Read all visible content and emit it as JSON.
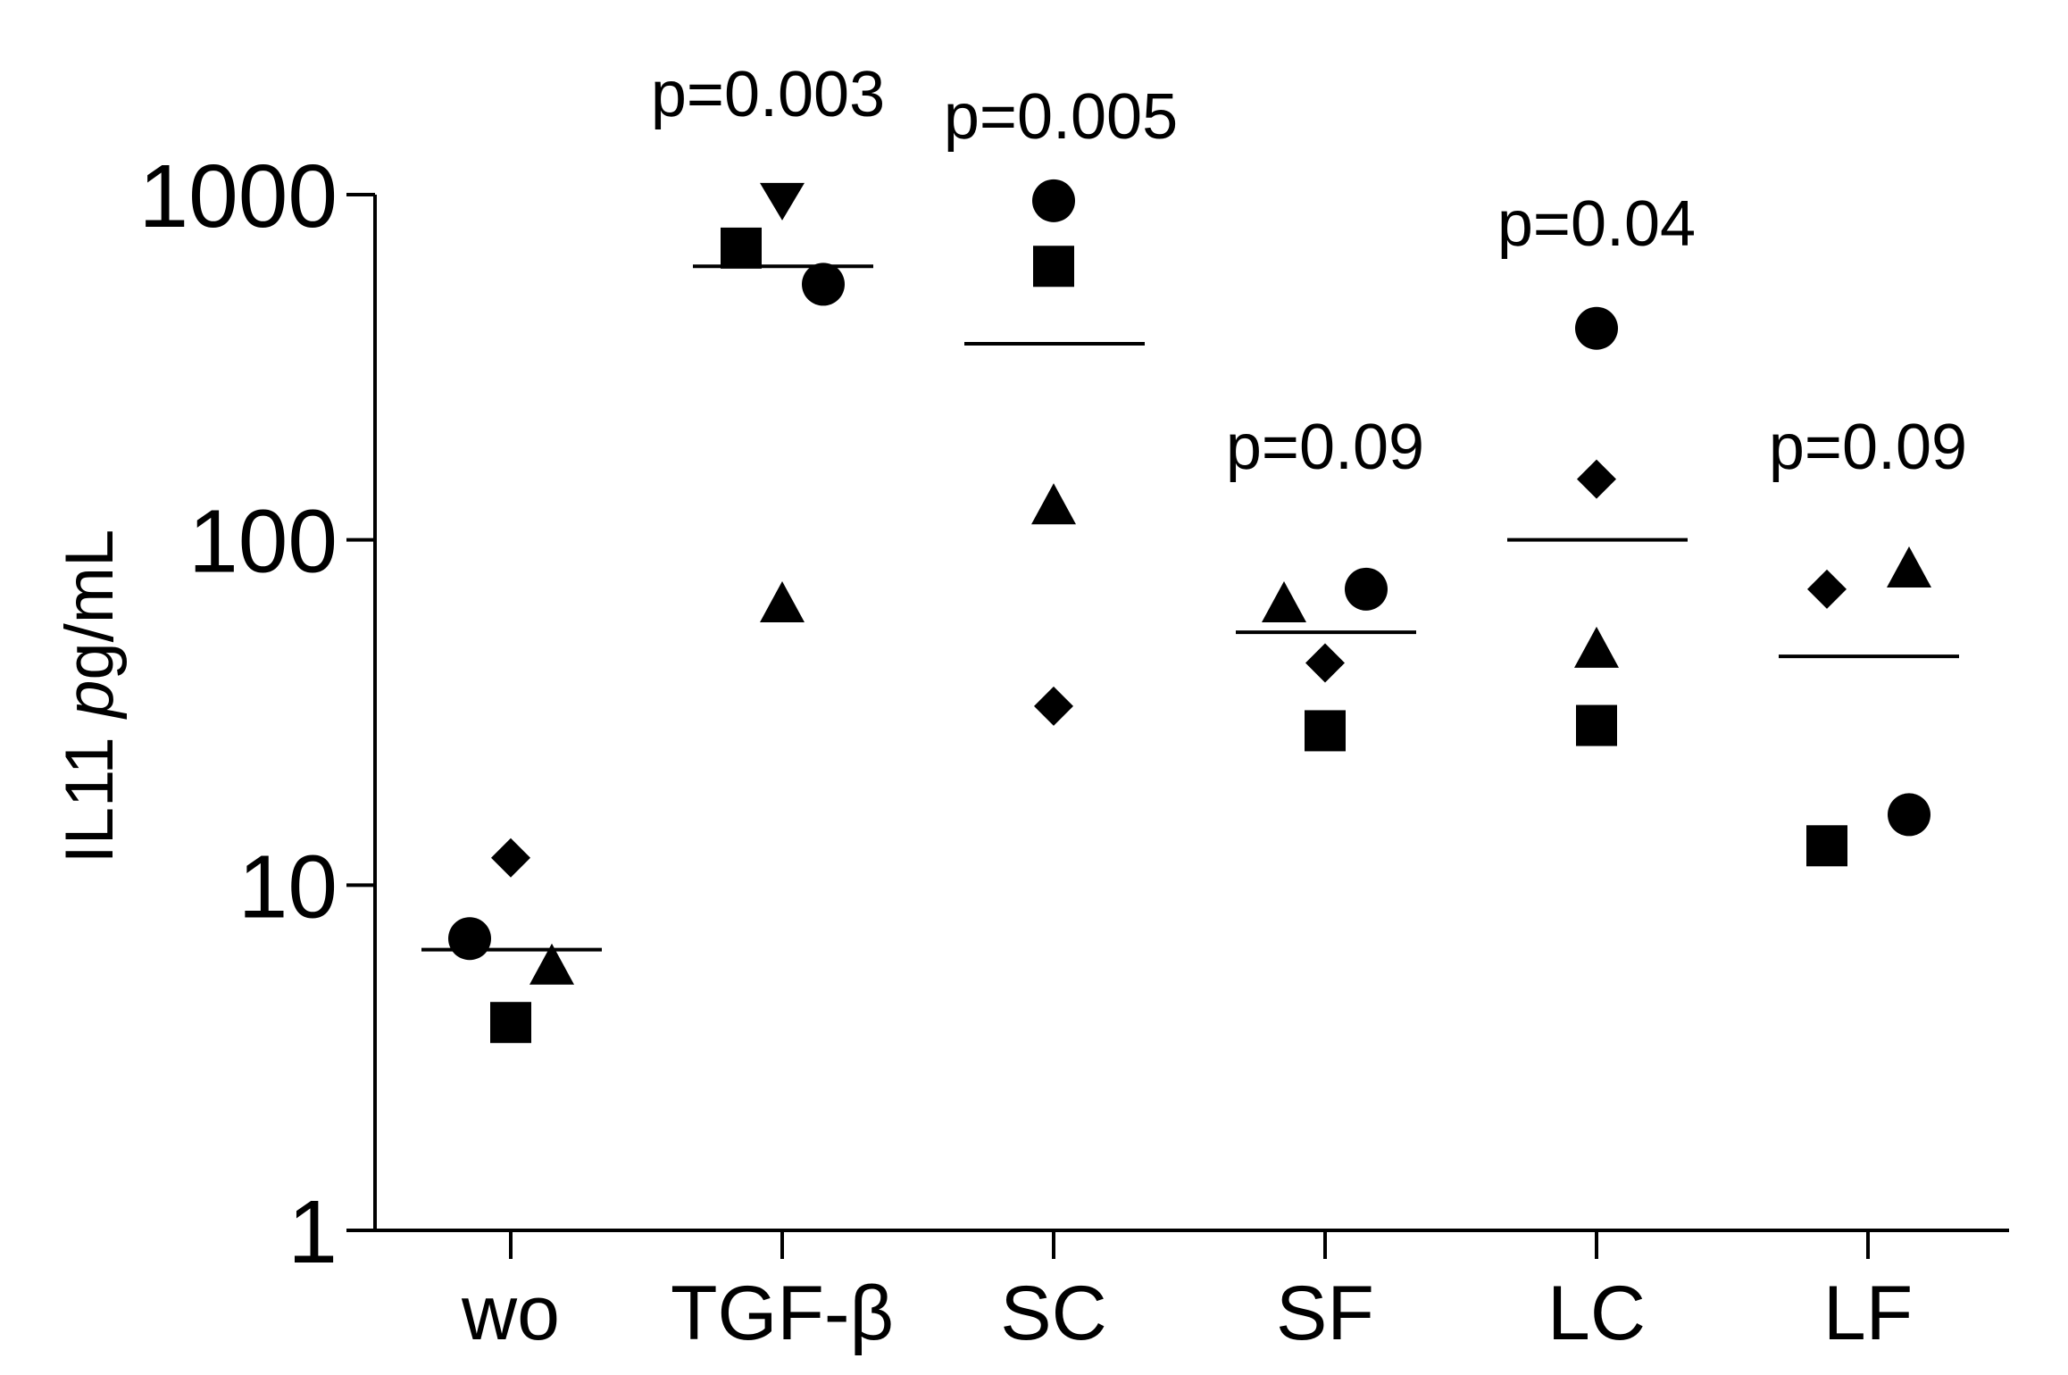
{
  "chart_data": {
    "type": "scatter",
    "title": "",
    "xlabel": "",
    "ylabel": {
      "prefix": "IL11 ",
      "italic": "p",
      "suffix": "g/mL"
    },
    "yscale": "log",
    "ylim": [
      1,
      1000
    ],
    "yticks": [
      {
        "value": 1,
        "label": "1"
      },
      {
        "value": 10,
        "label": "10"
      },
      {
        "value": 100,
        "label": "100"
      },
      {
        "value": 1000,
        "label": "1000"
      }
    ],
    "categories": [
      "wo",
      "TGF-β",
      "SC",
      "SF",
      "LC",
      "LF"
    ],
    "groups": [
      {
        "category": "wo",
        "mean": 6.5,
        "p_value": null,
        "points": [
          {
            "marker": "diamond",
            "value": 12
          },
          {
            "marker": "circle",
            "value": 7
          },
          {
            "marker": "triangle",
            "value": 5.8
          },
          {
            "marker": "square",
            "value": 4
          }
        ]
      },
      {
        "category": "TGF-β",
        "mean": 620,
        "p_value": "p=0.003",
        "points": [
          {
            "marker": "triangle-down",
            "value": 960
          },
          {
            "marker": "square",
            "value": 700
          },
          {
            "marker": "circle",
            "value": 550
          },
          {
            "marker": "triangle",
            "value": 65
          }
        ]
      },
      {
        "category": "SC",
        "mean": 370,
        "p_value": "p=0.005",
        "points": [
          {
            "marker": "circle",
            "value": 960
          },
          {
            "marker": "square",
            "value": 620
          },
          {
            "marker": "triangle",
            "value": 125
          },
          {
            "marker": "diamond",
            "value": 33
          }
        ]
      },
      {
        "category": "SF",
        "mean": 54,
        "p_value": "p=0.09",
        "points": [
          {
            "marker": "triangle",
            "value": 65
          },
          {
            "marker": "circle",
            "value": 72
          },
          {
            "marker": "diamond",
            "value": 44
          },
          {
            "marker": "square",
            "value": 28
          }
        ]
      },
      {
        "category": "LC",
        "mean": 100,
        "p_value": "p=0.04",
        "points": [
          {
            "marker": "circle",
            "value": 410
          },
          {
            "marker": "diamond",
            "value": 150
          },
          {
            "marker": "triangle",
            "value": 48
          },
          {
            "marker": "square",
            "value": 29
          }
        ]
      },
      {
        "category": "LF",
        "mean": 46,
        "p_value": "p=0.09",
        "points": [
          {
            "marker": "diamond",
            "value": 72
          },
          {
            "marker": "triangle",
            "value": 82
          },
          {
            "marker": "circle",
            "value": 16
          },
          {
            "marker": "square",
            "value": 13
          }
        ]
      }
    ]
  }
}
